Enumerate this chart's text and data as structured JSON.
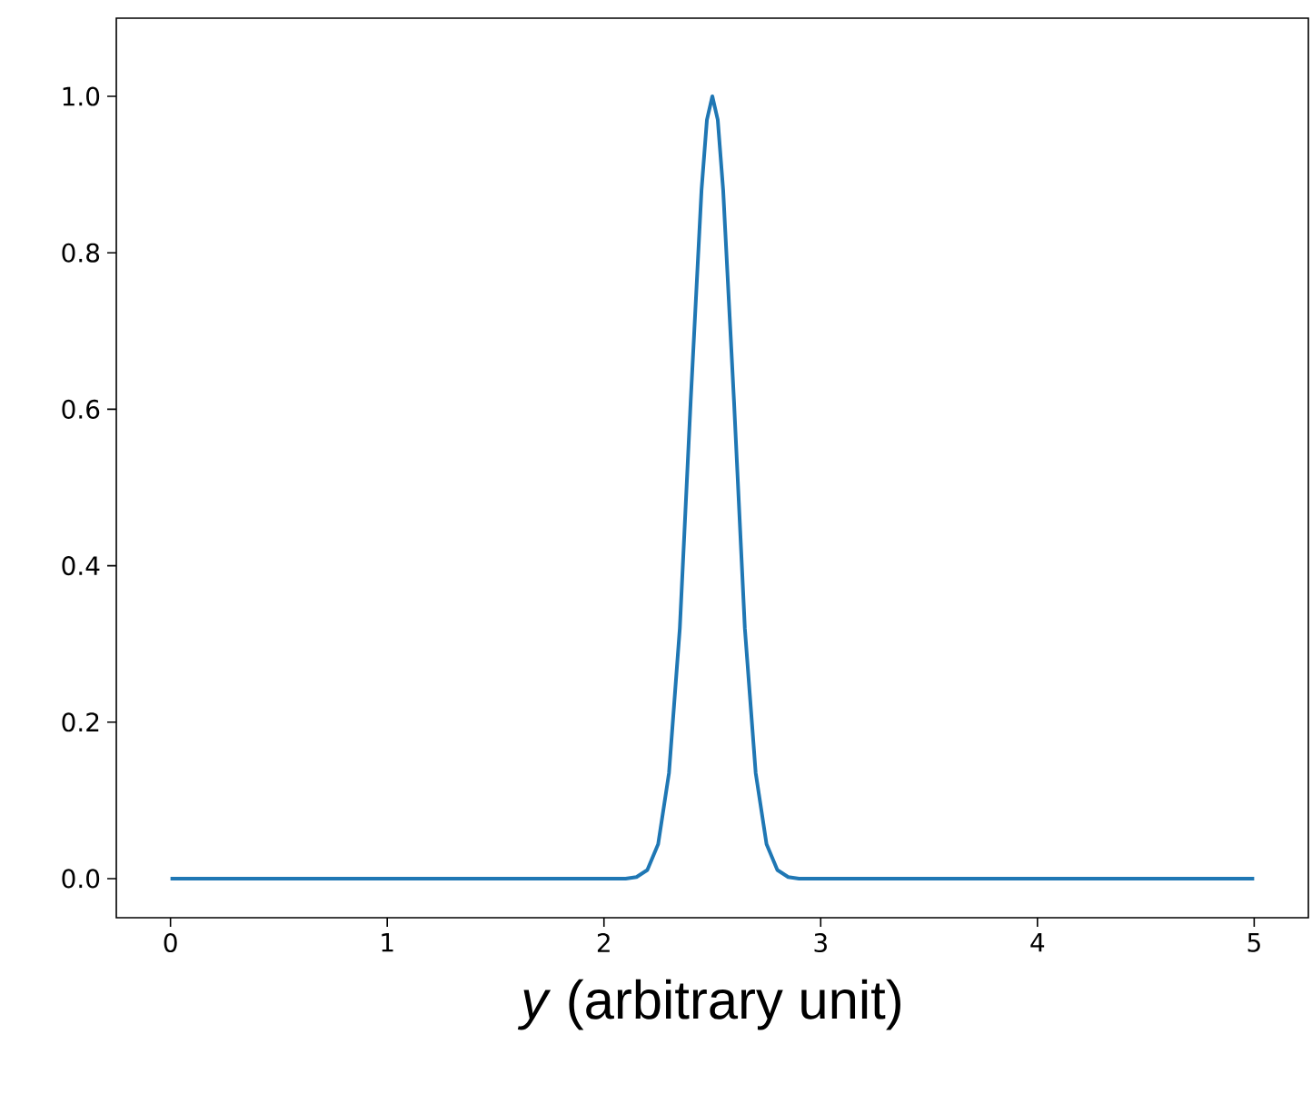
{
  "chart_data": {
    "type": "line",
    "xlabel": "*y* (arbitrary unit)",
    "series": [
      {
        "color": "#1f77b4",
        "x": [
          0,
          1,
          2,
          2.1,
          2.15,
          2.2,
          2.25,
          2.3,
          2.35,
          2.4,
          2.45,
          2.475,
          2.5,
          2.525,
          2.55,
          2.6,
          2.65,
          2.7,
          2.75,
          2.8,
          2.85,
          2.9,
          3,
          4,
          5
        ],
        "values": [
          0,
          0,
          0,
          0,
          0.002,
          0.011,
          0.044,
          0.135,
          0.32,
          0.61,
          0.88,
          0.97,
          1.0,
          0.97,
          0.88,
          0.61,
          0.32,
          0.135,
          0.044,
          0.011,
          0.002,
          0,
          0,
          0,
          0
        ]
      }
    ],
    "xlim": [
      -0.25,
      5.25
    ],
    "ylim": [
      -0.05,
      1.1
    ],
    "xticks": [
      0,
      1,
      2,
      3,
      4,
      5
    ],
    "yticks": [
      {
        "value": 0,
        "label": "0.0"
      },
      {
        "value": 0.2,
        "label": "0.2"
      },
      {
        "value": 0.4,
        "label": "0.4"
      },
      {
        "value": 0.6,
        "label": "0.6"
      },
      {
        "value": 0.8,
        "label": "0.8"
      },
      {
        "value": 1.0,
        "label": "1.0"
      }
    ],
    "grid": false,
    "marker": "none",
    "line_style": "solid"
  }
}
